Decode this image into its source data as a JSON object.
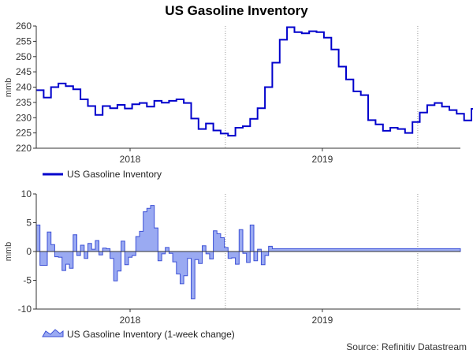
{
  "title": "US Gasoline Inventory",
  "source": "Source: Refinitiv Datastream",
  "colors": {
    "line": "#0000cc",
    "area_fill": "#9aaaf2",
    "area_stroke": "#3b4fd6",
    "grid": "#9a9a9a"
  },
  "chart_data": [
    {
      "type": "line",
      "ylabel": "mmb",
      "ylim": [
        220,
        260
      ],
      "yticks": [
        220,
        225,
        230,
        235,
        240,
        245,
        250,
        255,
        260
      ],
      "xlim": [
        "2017-07-07",
        "2019-09-20"
      ],
      "xticks": [
        {
          "label": "2018",
          "at": "2018-01-01"
        },
        {
          "label": "2019",
          "at": "2019-01-01"
        }
      ],
      "x_gridlines": [
        "2018-07-01",
        "2019-07-01"
      ],
      "legend": "bottom-left",
      "series": [
        {
          "name": "US Gasoline Inventory",
          "start": "2017-07-07",
          "step_days": 7,
          "values": [
            239,
            239,
            236.6,
            236.6,
            240,
            240,
            241.2,
            241.2,
            240.3,
            240.3,
            239.3,
            239.3,
            236,
            236,
            233.8,
            233.8,
            230.9,
            230.9,
            233.8,
            233.8,
            233.1,
            233.1,
            234.2,
            234.2,
            233,
            233,
            234.4,
            234.4,
            234.8,
            234.8,
            233.6,
            233.6,
            235.5,
            235.5,
            234.9,
            234.9,
            235.5,
            235.5,
            236,
            236,
            234.8,
            234.8,
            229.7,
            229.7,
            226.3,
            226.3,
            228.1,
            228.1,
            225.8,
            225.8,
            224.8,
            224.8,
            224.1,
            224.1,
            226.7,
            226.7,
            227.2,
            227.2,
            229.6,
            229.6,
            233.1,
            233.1,
            240,
            240,
            248,
            248,
            255.5,
            255.5,
            259.6,
            259.6,
            258,
            258,
            257.6,
            257.6,
            258.3,
            258.3,
            258,
            258,
            256.2,
            256.2,
            252.3,
            252.3,
            246.7,
            246.7,
            242.5,
            242.5,
            238.6,
            238.6,
            237.4,
            237.4,
            229.2,
            229.2,
            227.8,
            227.8,
            225.7,
            225.7,
            226.7,
            226.7,
            226.3,
            226.3,
            225,
            225,
            228.6,
            228.6,
            231.7,
            231.7,
            234.1,
            234.1,
            234.8,
            234.8,
            233.6,
            233.6,
            232.5,
            232.5,
            231.3,
            231.3,
            229.1,
            229.1,
            232.9,
            232.9,
            232.6,
            232.6,
            230.7,
            230.7,
            235.3,
            235.3,
            233.7,
            233.7,
            234.1,
            234.1,
            231.8,
            231.8,
            229.6,
            229.6,
            228.9,
            228.9,
            229.8,
            229.8,
            230.3,
            230.3,
            230
          ]
        }
      ]
    },
    {
      "type": "area",
      "ylabel": "mmb",
      "ylim": [
        -10,
        10
      ],
      "yticks": [
        -10,
        -5,
        0,
        5,
        10
      ],
      "xlim": [
        "2017-07-07",
        "2019-09-20"
      ],
      "xticks": [
        {
          "label": "2018",
          "at": "2018-01-01"
        },
        {
          "label": "2019",
          "at": "2019-01-01"
        }
      ],
      "x_gridlines": [
        "2018-07-01",
        "2019-07-01"
      ],
      "legend": "bottom-left",
      "series": [
        {
          "name": "US Gasoline Inventory (1-week change)",
          "start": "2017-07-07",
          "step_days": 7,
          "values": [
            4.6,
            -2.4,
            -2.4,
            3.4,
            1.2,
            -0.9,
            -1,
            -3.3,
            -2.2,
            -2.9,
            2.9,
            -0.7,
            1.1,
            -1.2,
            1.4,
            0.4,
            1.9,
            -0.6,
            0.6,
            0.5,
            -1.2,
            -5.1,
            -3.4,
            1.8,
            -2.3,
            -1,
            -0.7,
            2.6,
            3.5,
            6.9,
            7.5,
            8,
            4.1,
            -1.6,
            -0.4,
            0.7,
            -0.3,
            -1.8,
            -3.9,
            -5.6,
            -4.2,
            -1.2,
            -8.2,
            -1.4,
            -2.1,
            1,
            -0.4,
            -1.3,
            3.6,
            3.1,
            2.4,
            0.7,
            -1.2,
            -1.1,
            -2.2,
            3.8,
            -0.3,
            -1.9,
            4.6,
            -1.6,
            0.4,
            -2.3,
            -0.7,
            0.9,
            0.5
          ]
        }
      ]
    }
  ]
}
